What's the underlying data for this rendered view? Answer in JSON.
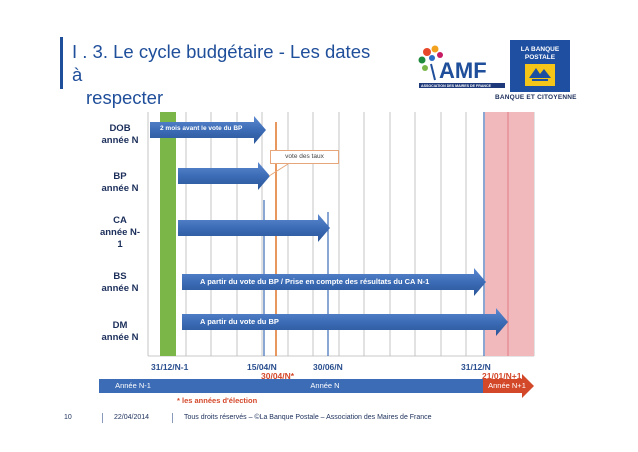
{
  "slide": {
    "title_line1": "I . 3. Le cycle budgétaire - Les dates à",
    "title_line2": "respecter"
  },
  "logos": {
    "amf_wordmark": "AMF",
    "amf_tagline": "ASSOCIATION DES MAIRES DE FRANCE",
    "bank_name": "LA BANQUE POSTALE",
    "bank_caption": "BANQUE ET CITOYENNE"
  },
  "rows": [
    {
      "label": "DOB\nannée N",
      "bar_text": "2 mois avant le vote du BP"
    },
    {
      "label": "BP\nannée N",
      "bar_text": ""
    },
    {
      "label": "CA\nannée N-\n1",
      "bar_text": ""
    },
    {
      "label": "BS\nannée N",
      "bar_text": "A partir du vote du BP / Prise en compte des résultats du CA N-1"
    },
    {
      "label": "DM\nannée N",
      "bar_text": "A partir du vote du BP"
    }
  ],
  "callout": "vote des taux",
  "dates": {
    "d1": "31/12/N-1",
    "d2": "15/04/N",
    "d3": "30/04/N*",
    "d4": "30/06/N",
    "d5": "31/12/N",
    "d6": "21/01/N+1"
  },
  "years": {
    "prev": "Année N-1",
    "current": "Année N",
    "next": "Année N+1"
  },
  "election_note": "* les années d'élection",
  "footer": {
    "page": "10",
    "date": "22/04/2014",
    "rights": "Tous droits réservés – ©La Banque Postale – Association des Maires de France"
  },
  "colors": {
    "title": "#1f4e9a",
    "arrow": "#3c6cb6",
    "green": "#7ab648",
    "pink": "#f2b9bd",
    "orange": "#e0772a",
    "red_accent": "#d4482a",
    "timeline_blue": "#1f4fa0"
  }
}
